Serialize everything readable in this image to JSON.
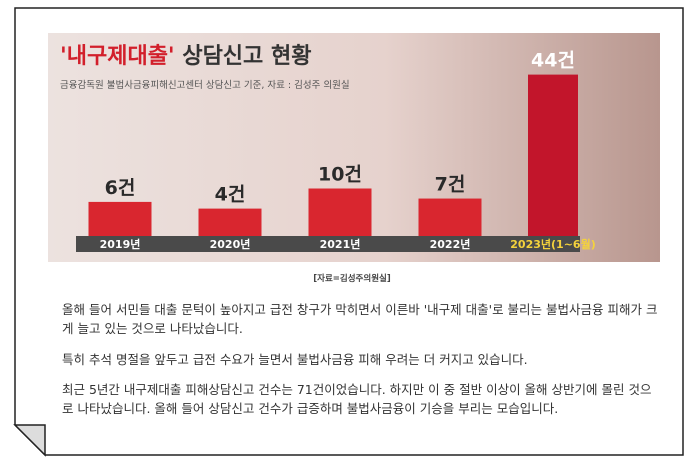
{
  "chart_data": {
    "type": "bar",
    "title": "'내구제대출' 상담신고 현황",
    "subtitle": "금융감독원 불법사금융피해신고센터 상담신고 기준, 자료 : 김성주 의원실",
    "categories": [
      "2019년",
      "2020년",
      "2021년",
      "2022년",
      "2023년(1~6월)"
    ],
    "values": [
      6,
      4,
      10,
      7,
      44
    ],
    "value_labels": [
      "6건",
      "4건",
      "10건",
      "7건",
      "44건"
    ],
    "colors": [
      "#d9262f",
      "#d9262f",
      "#d9262f",
      "#d9262f",
      "#c2152b"
    ]
  },
  "caption": "[자료=김성주의원실]",
  "paragraphs": [
    "올해 들어 서민들 대출 문턱이 높아지고 급전 창구가 막히면서 이른바 '내구제 대출'로 불리는 불법사금융 피해가 크게 늘고 있는 것으로 나타났습니다.",
    "특히 추석 명절을 앞두고 급전 수요가 늘면서 불법사금융 피해 우려는 더 커지고 있습니다.",
    "최근 5년간 내구제대출 피해상담신고 건수는 71건이었습니다. 하지만 이 중 절반 이상이 올해 상반기에 몰린 것으로 나타났습니다. 올해 들어 상담신고 건수가 급증하며 불법사금융이 기승을 부리는 모습입니다."
  ]
}
